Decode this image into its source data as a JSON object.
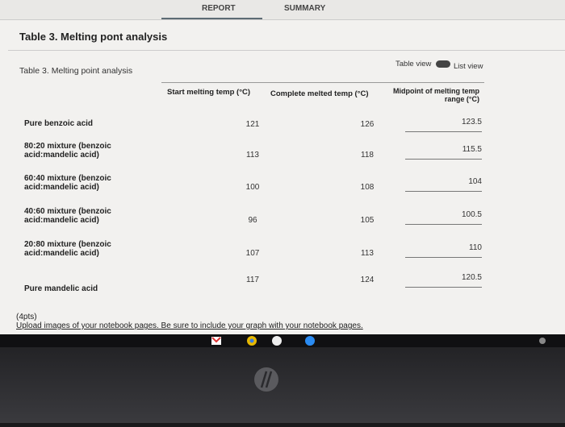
{
  "tabs": [
    "REPORT",
    "SUMMARY"
  ],
  "heading": "Table 3. Melting pont analysis",
  "toggle": {
    "left": "Table view",
    "right": "List view"
  },
  "table": {
    "caption": "Table 3. Melting point analysis",
    "headers": [
      "Start melting temp (°C)",
      "Complete melted temp (°C)",
      "Midpoint of melting temp range (°C)"
    ],
    "rows": [
      [
        "Pure benzoic acid",
        "121",
        "126",
        "123.5"
      ],
      [
        "80:20 mixture (benzoic acid:mandelic acid)",
        "113",
        "118",
        "115.5"
      ],
      [
        "60:40 mixture (benzoic acid:mandelic acid)",
        "100",
        "108",
        "104"
      ],
      [
        "40:60 mixture (benzoic acid:mandelic acid)",
        "96",
        "105",
        "100.5"
      ],
      [
        "20:80 mixture (benzoic acid:mandelic acid)",
        "107",
        "113",
        "110"
      ],
      [
        "Pure mandelic acid",
        "117",
        "124",
        "120.5"
      ]
    ]
  },
  "points": "(4pts)",
  "instructions": "Upload images of your notebook pages. Be sure to include your graph with your notebook pages."
}
